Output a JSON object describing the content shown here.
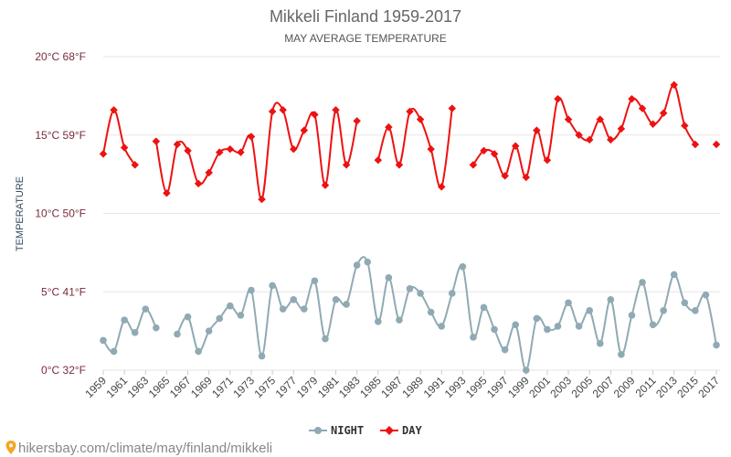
{
  "chart_data": {
    "type": "line",
    "title": "Mikkeli Finland 1959-2017",
    "subtitle": "MAY AVERAGE TEMPERATURE",
    "ylabel": "TEMPERATURE",
    "ylim": [
      0,
      20
    ],
    "y_ticks": [
      {
        "value": 0,
        "label": "0°C 32°F"
      },
      {
        "value": 5,
        "label": "5°C 41°F"
      },
      {
        "value": 10,
        "label": "10°C 50°F"
      },
      {
        "value": 15,
        "label": "15°C 59°F"
      },
      {
        "value": 20,
        "label": "20°C 68°F"
      }
    ],
    "x_tick_labels": [
      "1959",
      "1961",
      "1963",
      "1965",
      "1967",
      "1969",
      "1971",
      "1973",
      "1975",
      "1977",
      "1979",
      "1981",
      "1983",
      "1985",
      "1987",
      "1989",
      "1991",
      "1993",
      "1995",
      "1997",
      "1999",
      "2001",
      "2003",
      "2005",
      "2007",
      "2009",
      "2011",
      "2013",
      "2015",
      "2017"
    ],
    "x": [
      1959,
      1960,
      1961,
      1962,
      1963,
      1964,
      1965,
      1966,
      1967,
      1968,
      1969,
      1970,
      1971,
      1972,
      1973,
      1974,
      1975,
      1976,
      1977,
      1978,
      1979,
      1980,
      1981,
      1982,
      1983,
      1984,
      1985,
      1986,
      1987,
      1988,
      1989,
      1990,
      1991,
      1992,
      1993,
      1994,
      1995,
      1996,
      1997,
      1998,
      1999,
      2000,
      2001,
      2002,
      2003,
      2004,
      2005,
      2006,
      2007,
      2008,
      2009,
      2010,
      2011,
      2012,
      2013,
      2014,
      2015,
      2016,
      2017
    ],
    "series": [
      {
        "name": "NIGHT",
        "color": "#90aab4",
        "values": [
          1.9,
          1.2,
          3.2,
          2.4,
          3.9,
          2.7,
          null,
          2.3,
          3.4,
          1.2,
          2.5,
          3.3,
          4.1,
          3.5,
          5.1,
          0.9,
          5.4,
          3.9,
          4.5,
          3.9,
          5.7,
          2.0,
          4.5,
          4.2,
          6.7,
          6.9,
          3.1,
          5.9,
          3.2,
          5.2,
          4.9,
          3.7,
          2.8,
          4.9,
          6.6,
          2.1,
          4.0,
          2.6,
          1.3,
          2.9,
          0.0,
          3.3,
          2.6,
          2.8,
          4.3,
          2.8,
          3.8,
          1.7,
          4.5,
          1.0,
          3.5,
          5.6,
          2.9,
          3.8,
          6.1,
          4.3,
          3.8,
          4.8,
          1.6
        ]
      },
      {
        "name": "DAY",
        "color": "#ee1111",
        "values": [
          13.8,
          16.6,
          14.2,
          13.1,
          null,
          14.6,
          11.3,
          14.4,
          14.0,
          11.9,
          12.6,
          13.9,
          14.1,
          13.9,
          14.9,
          10.9,
          16.5,
          16.6,
          14.1,
          15.3,
          16.3,
          11.8,
          16.6,
          13.1,
          15.9,
          null,
          13.4,
          15.5,
          13.1,
          16.5,
          16.0,
          14.1,
          11.7,
          16.7,
          null,
          13.1,
          14.0,
          13.8,
          12.4,
          14.3,
          12.3,
          15.3,
          13.4,
          17.3,
          16.0,
          15.0,
          14.7,
          16.0,
          14.7,
          15.4,
          17.3,
          16.7,
          15.7,
          16.4,
          18.2,
          15.6,
          14.4,
          null,
          14.4
        ]
      }
    ],
    "legend_position": "bottom-center",
    "grid": true
  },
  "footer": {
    "text": "hikersbay.com/climate/may/finland/mikkeli",
    "pin_icon": "map-pin-icon"
  }
}
